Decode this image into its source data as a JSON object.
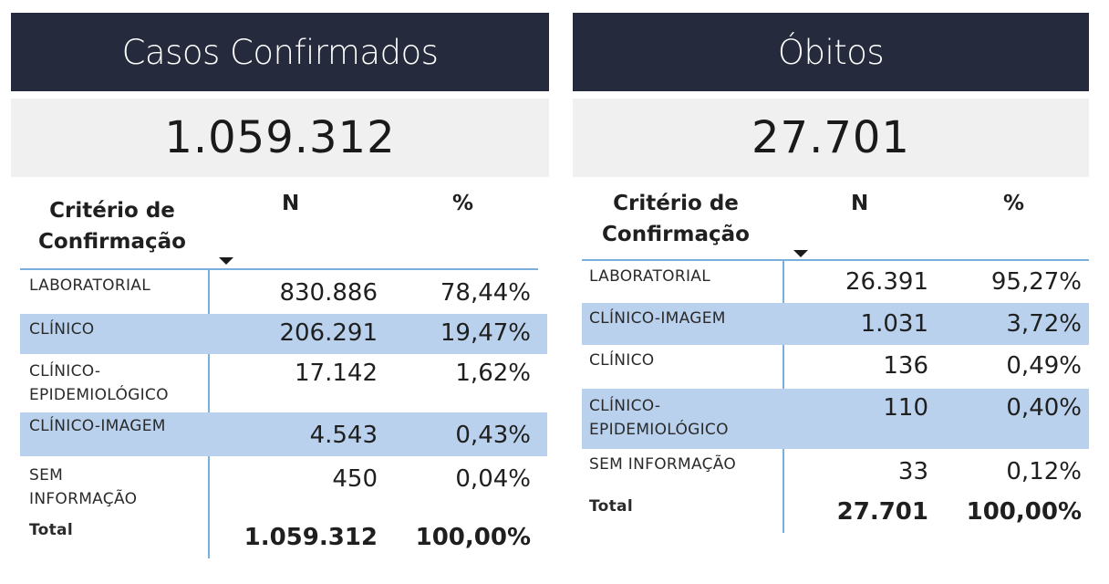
{
  "casos": {
    "title": "Casos Confirmados",
    "total_kpi": "1.059.312",
    "columns": {
      "criterio": "Critério de Confirmação",
      "n": "N",
      "pct": "%"
    },
    "rows": [
      {
        "label": "LABORATORIAL",
        "n": "830.886",
        "pct": "78,44%"
      },
      {
        "label": "CLÍNICO",
        "n": "206.291",
        "pct": "19,47%"
      },
      {
        "label": "CLÍNICO-EPIDEMIOLÓGICO",
        "label_line1": "CLÍNICO-",
        "label_line2": "EPIDEMIOLÓGICO",
        "n": "17.142",
        "pct": "1,62%"
      },
      {
        "label": "CLÍNICO-IMAGEM",
        "n": "4.543",
        "pct": "0,43%"
      },
      {
        "label": "SEM INFORMAÇÃO",
        "label_line1": "SEM",
        "label_line2": "INFORMAÇÃO",
        "n": "450",
        "pct": "0,04%"
      }
    ],
    "total": {
      "label": "Total",
      "n": "1.059.312",
      "pct": "100,00%"
    }
  },
  "obitos": {
    "title": "Óbitos",
    "total_kpi": "27.701",
    "columns": {
      "criterio": "Critério de Confirmação",
      "n": "N",
      "pct": "%"
    },
    "rows": [
      {
        "label": "LABORATORIAL",
        "n": "26.391",
        "pct": "95,27%"
      },
      {
        "label": "CLÍNICO-IMAGEM",
        "n": "1.031",
        "pct": "3,72%"
      },
      {
        "label": "CLÍNICO",
        "n": "136",
        "pct": "0,49%"
      },
      {
        "label": "CLÍNICO-EPIDEMIOLÓGICO",
        "label_line1": "CLÍNICO-",
        "label_line2": "EPIDEMIOLÓGICO",
        "n": "110",
        "pct": "0,40%"
      },
      {
        "label": "SEM INFORMAÇÃO",
        "n": "33",
        "pct": "0,12%"
      }
    ],
    "total": {
      "label": "Total",
      "n": "27.701",
      "pct": "100,00%"
    }
  },
  "colors": {
    "header_bg": "#252a3c",
    "kpi_bg": "#f0f0f0",
    "row_highlight": "#b9d1ed",
    "rule": "#7aaede"
  }
}
